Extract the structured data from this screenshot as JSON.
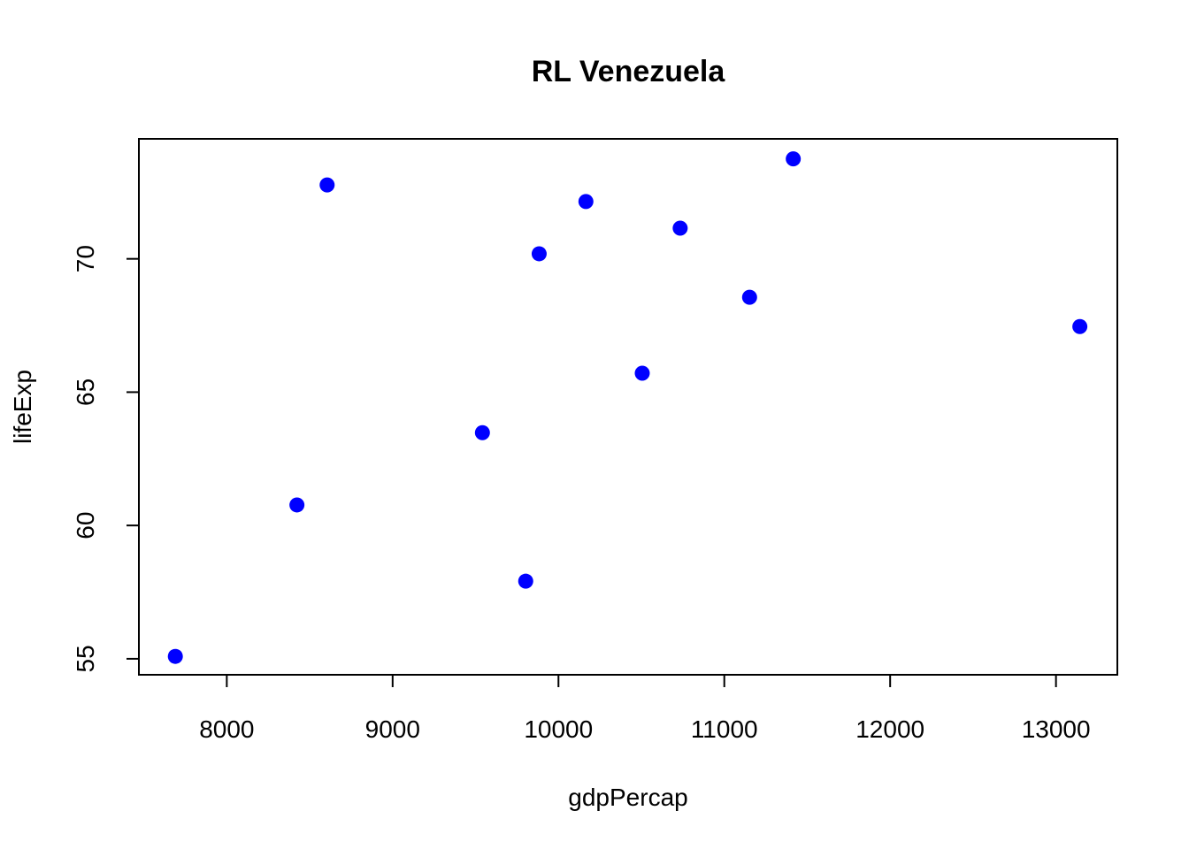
{
  "chart_data": {
    "type": "scatter",
    "title": "RL Venezuela",
    "xlabel": "gdpPercap",
    "ylabel": "lifeExp",
    "xlim": [
      7470,
      13370
    ],
    "ylim": [
      54.4,
      74.5
    ],
    "x_ticks": [
      8000,
      9000,
      10000,
      11000,
      12000,
      13000
    ],
    "x_tick_labels": [
      "8000",
      "9000",
      "10000",
      "11000",
      "12000",
      "13000"
    ],
    "y_ticks": [
      55,
      60,
      65,
      70
    ],
    "y_tick_labels": [
      "55",
      "60",
      "65",
      "70"
    ],
    "grid": false,
    "point_color": "#0000ff",
    "series": [
      {
        "x": [
          7689.8,
          9802.5,
          8422.97,
          9541.47,
          10505.26,
          13143.95,
          11152.41,
          9883.58,
          10733.93,
          10165.5,
          8605.05,
          11415.81
        ],
        "y": [
          55.09,
          57.91,
          60.77,
          63.48,
          65.71,
          67.46,
          68.56,
          70.19,
          71.15,
          72.15,
          72.77,
          73.75
        ]
      }
    ]
  }
}
